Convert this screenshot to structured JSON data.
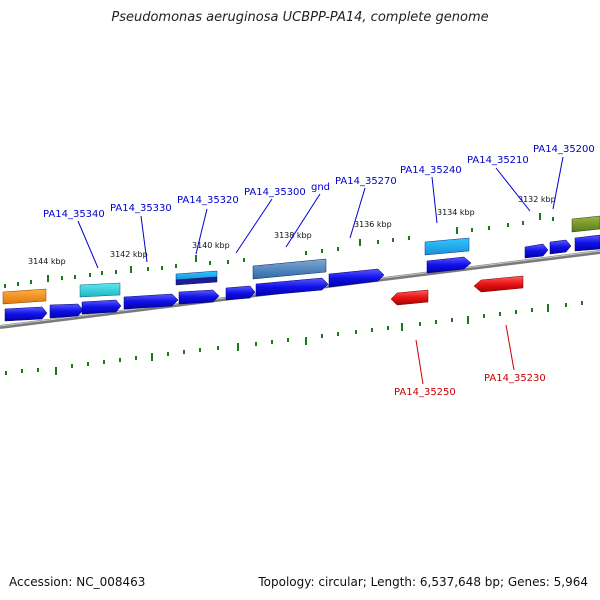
{
  "title": "Pseudomonas aeruginosa UCBPP-PA14, complete genome",
  "footer": {
    "accession": "Accession: NC_008463",
    "stats": "Topology: circular; Length: 6,537,648 bp; Genes: 5,964"
  },
  "ticks": [
    "3144 kbp",
    "3142 kbp",
    "3140 kbp",
    "3138 kbp",
    "3136 kbp",
    "3134 kbp",
    "3132 kbp"
  ],
  "genes_top": [
    "PA14_35340",
    "PA14_35330",
    "PA14_35320",
    "PA14_35300",
    "gnd",
    "PA14_35270",
    "PA14_35240",
    "PA14_35210",
    "PA14_35200"
  ],
  "genes_bottom": [
    "PA14_35250",
    "PA14_35230"
  ],
  "colors": {
    "forward_label": "#0000cc",
    "reverse_label": "#cc0000",
    "cds_forward": "#0a0adc",
    "cds_reverse": "#e11414",
    "backbone": "#808080",
    "tick": "#1a7a1a"
  }
}
